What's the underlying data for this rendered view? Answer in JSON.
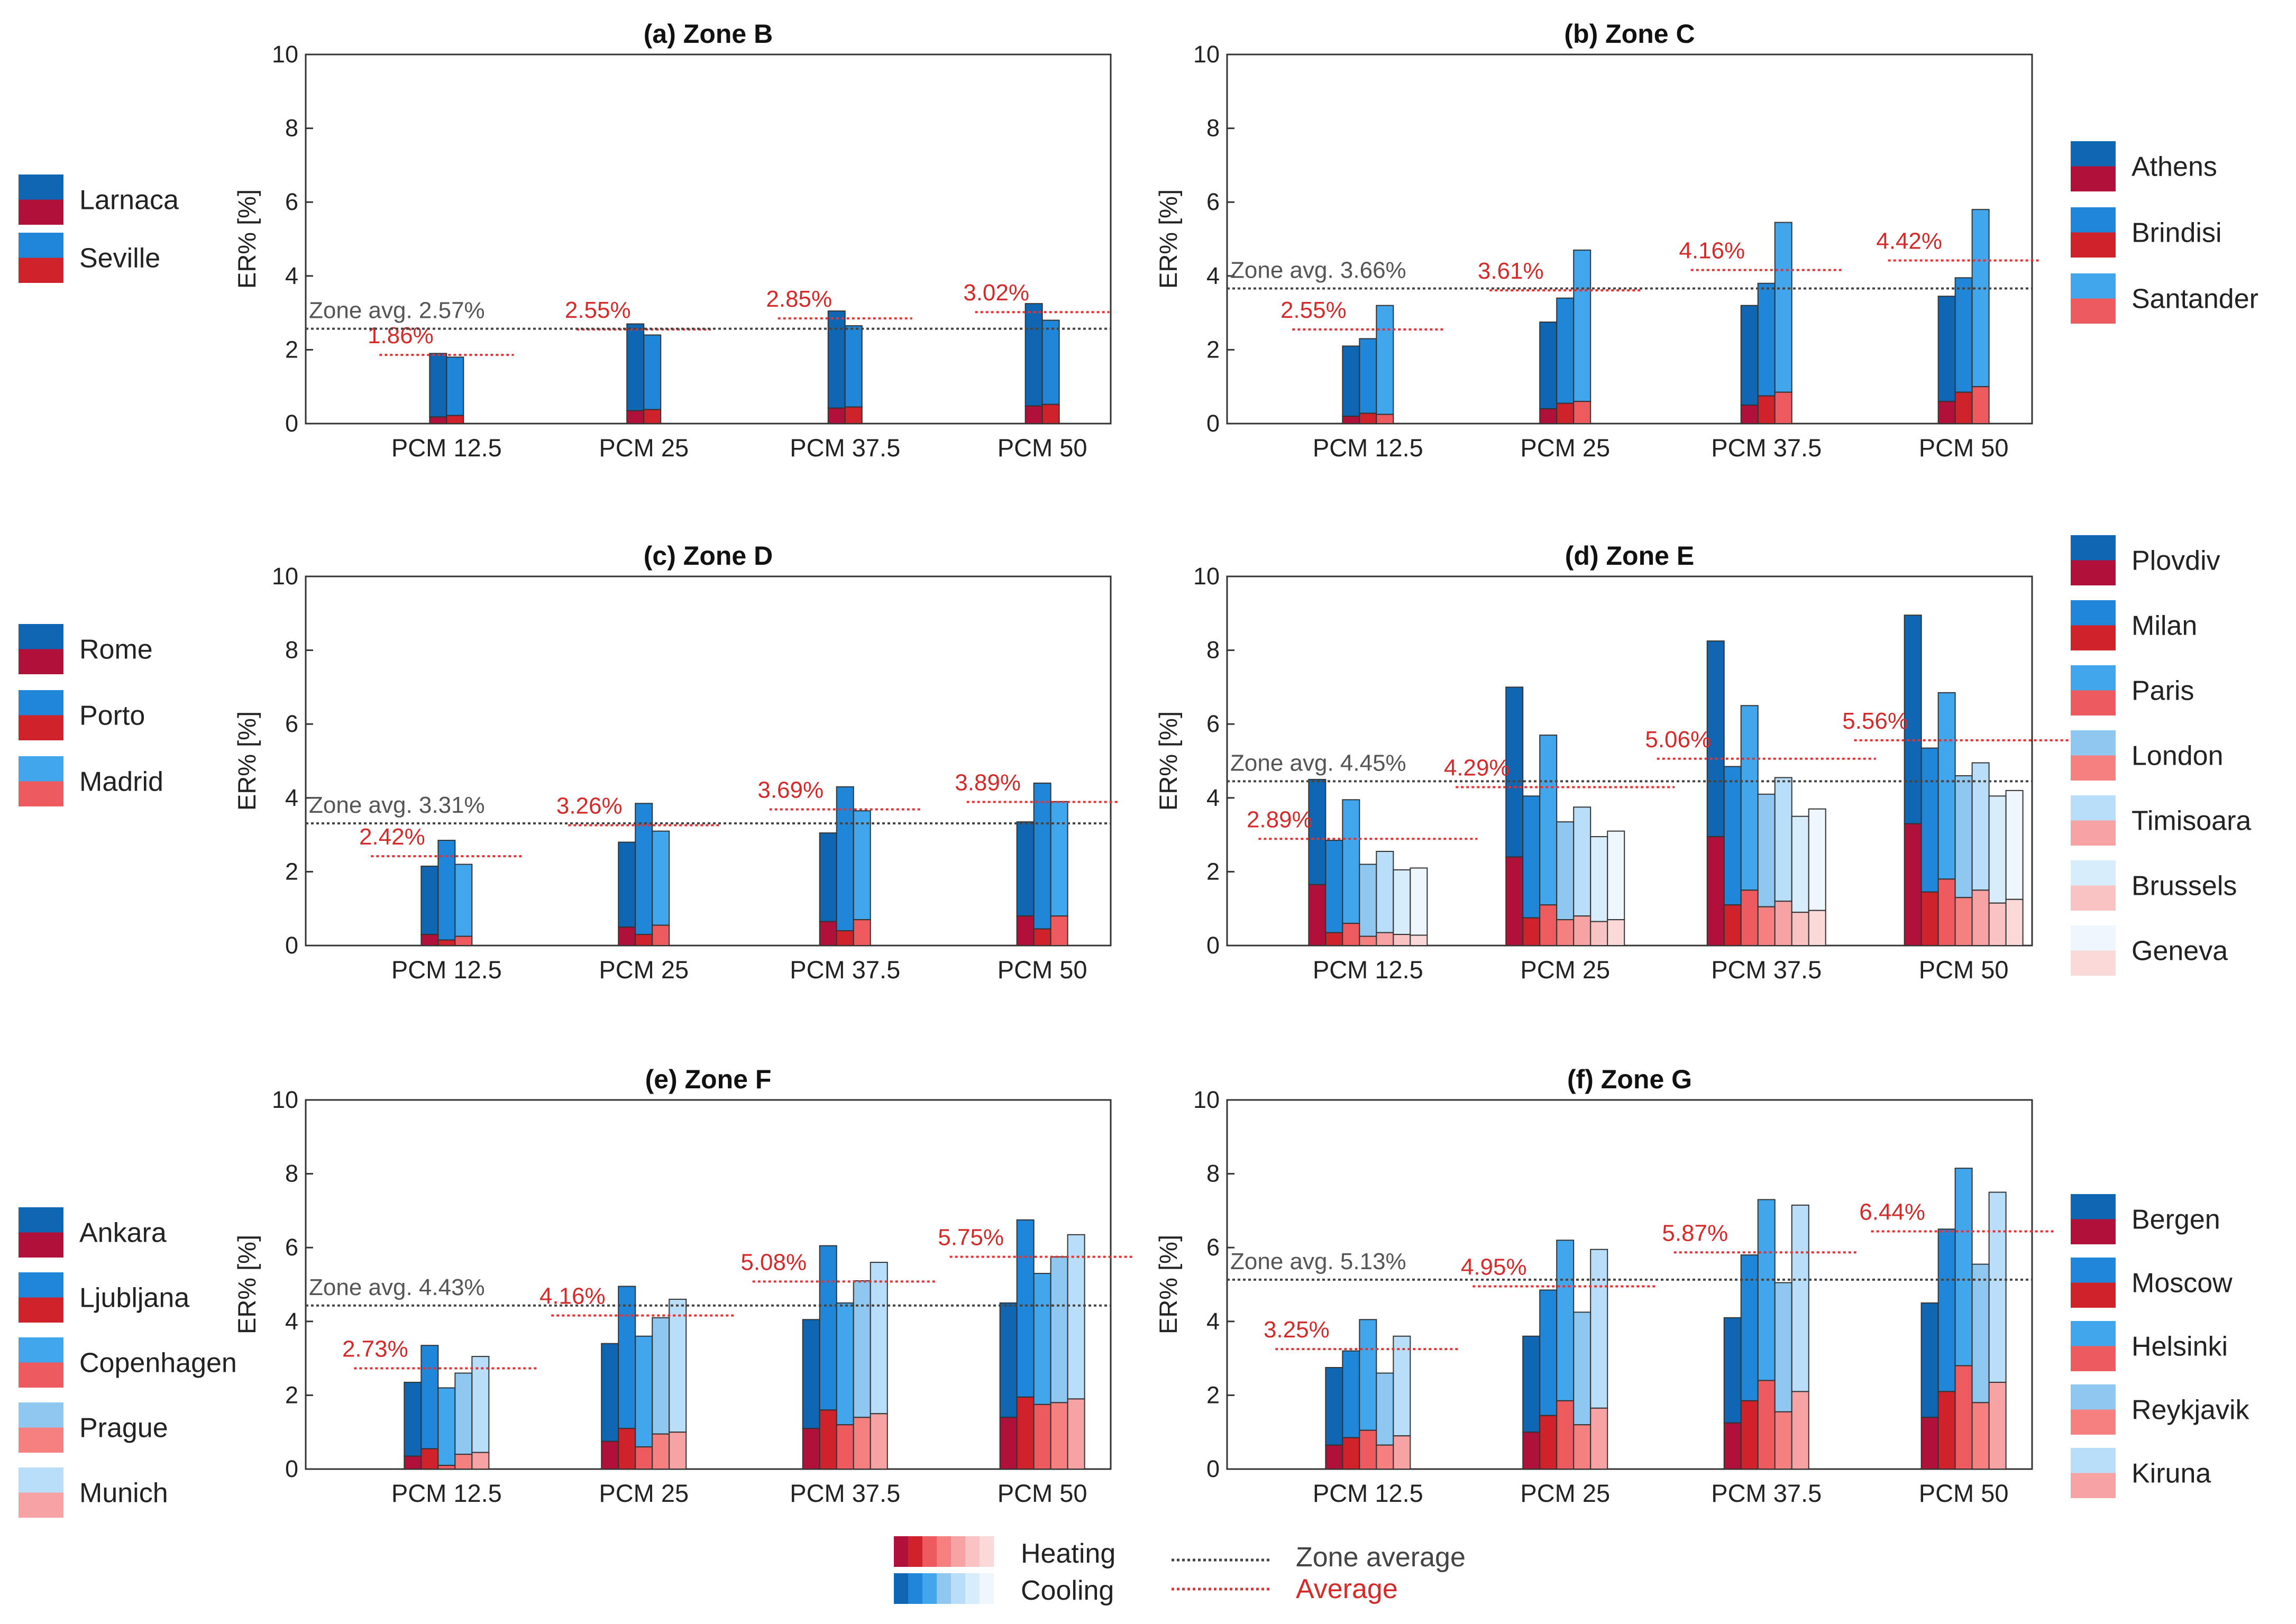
{
  "figure": {
    "bottom_legend": {
      "heating_label": "Heating",
      "cooling_label": "Cooling",
      "zone_average_label": "Zone average",
      "average_label": "Average"
    }
  },
  "colors": {
    "cooling": [
      "#0f67b3",
      "#1f86d8",
      "#41a6eb",
      "#8ec8f1",
      "#b9defa",
      "#d7edfb",
      "#eef7fd"
    ],
    "heating": [
      "#b0113a",
      "#d0222b",
      "#ee5b5f",
      "#f58080",
      "#f7a3a3",
      "#f9c3c3",
      "#fbd9d9"
    ],
    "zone_avg_line": "#444444",
    "avg_line": "#e63232"
  },
  "chart_data": [
    {
      "id": "a",
      "type": "bar",
      "subtype": "stacked-grouped",
      "title": "(a) Zone B",
      "ylabel": "ER% [%]",
      "ylim": [
        0,
        10
      ],
      "yticks": [
        0,
        2,
        4,
        6,
        8,
        10
      ],
      "categories": [
        "PCM 12.5",
        "PCM 25",
        "PCM 37.5",
        "PCM 50"
      ],
      "zone_avg": 2.57,
      "zone_avg_label": "Zone avg. 2.57%",
      "averages": [
        1.86,
        2.55,
        2.85,
        3.02
      ],
      "average_labels": [
        "1.86%",
        "2.55%",
        "2.85%",
        "3.02%"
      ],
      "legend_position": "left",
      "series": [
        {
          "name": "Larnaca",
          "total": [
            1.9,
            2.7,
            3.05,
            3.25
          ],
          "heating": [
            0.18,
            0.35,
            0.42,
            0.48
          ]
        },
        {
          "name": "Seville",
          "total": [
            1.8,
            2.4,
            2.65,
            2.8
          ],
          "heating": [
            0.22,
            0.38,
            0.45,
            0.52
          ]
        }
      ]
    },
    {
      "id": "b",
      "type": "bar",
      "subtype": "stacked-grouped",
      "title": "(b) Zone C",
      "ylabel": "ER% [%]",
      "ylim": [
        0,
        10
      ],
      "yticks": [
        0,
        2,
        4,
        6,
        8,
        10
      ],
      "categories": [
        "PCM 12.5",
        "PCM 25",
        "PCM 37.5",
        "PCM 50"
      ],
      "zone_avg": 3.66,
      "zone_avg_label": "Zone avg. 3.66%",
      "averages": [
        2.55,
        3.61,
        4.16,
        4.42
      ],
      "average_labels": [
        "2.55%",
        "3.61%",
        "4.16%",
        "4.42%"
      ],
      "legend_position": "right",
      "series": [
        {
          "name": "Athens",
          "total": [
            2.1,
            2.75,
            3.2,
            3.45
          ],
          "heating": [
            0.2,
            0.4,
            0.5,
            0.6
          ]
        },
        {
          "name": "Brindisi",
          "total": [
            2.3,
            3.4,
            3.8,
            3.95
          ],
          "heating": [
            0.28,
            0.55,
            0.75,
            0.85
          ]
        },
        {
          "name": "Santander",
          "total": [
            3.2,
            4.7,
            5.45,
            5.8
          ],
          "heating": [
            0.25,
            0.6,
            0.85,
            1.0
          ]
        }
      ]
    },
    {
      "id": "c",
      "type": "bar",
      "subtype": "stacked-grouped",
      "title": "(c) Zone D",
      "ylabel": "ER% [%]",
      "ylim": [
        0,
        10
      ],
      "yticks": [
        0,
        2,
        4,
        6,
        8,
        10
      ],
      "categories": [
        "PCM 12.5",
        "PCM 25",
        "PCM 37.5",
        "PCM 50"
      ],
      "zone_avg": 3.31,
      "zone_avg_label": "Zone avg. 3.31%",
      "averages": [
        2.42,
        3.26,
        3.69,
        3.89
      ],
      "average_labels": [
        "2.42%",
        "3.26%",
        "3.69%",
        "3.89%"
      ],
      "legend_position": "left",
      "series": [
        {
          "name": "Rome",
          "total": [
            2.15,
            2.8,
            3.05,
            3.35
          ],
          "heating": [
            0.3,
            0.5,
            0.65,
            0.8
          ]
        },
        {
          "name": "Porto",
          "total": [
            2.85,
            3.85,
            4.3,
            4.4
          ],
          "heating": [
            0.15,
            0.3,
            0.4,
            0.45
          ]
        },
        {
          "name": "Madrid",
          "total": [
            2.2,
            3.1,
            3.65,
            3.9
          ],
          "heating": [
            0.25,
            0.55,
            0.7,
            0.8
          ]
        }
      ]
    },
    {
      "id": "d",
      "type": "bar",
      "subtype": "stacked-grouped",
      "title": "(d) Zone E",
      "ylabel": "ER% [%]",
      "ylim": [
        0,
        10
      ],
      "yticks": [
        0,
        2,
        4,
        6,
        8,
        10
      ],
      "categories": [
        "PCM 12.5",
        "PCM 25",
        "PCM 37.5",
        "PCM 50"
      ],
      "zone_avg": 4.45,
      "zone_avg_label": "Zone avg. 4.45%",
      "averages": [
        2.89,
        4.29,
        5.06,
        5.56
      ],
      "average_labels": [
        "2.89%",
        "4.29%",
        "5.06%",
        "5.56%"
      ],
      "legend_position": "right",
      "series": [
        {
          "name": "Plovdiv",
          "total": [
            4.5,
            7.0,
            8.25,
            8.95
          ],
          "heating": [
            1.65,
            2.4,
            2.95,
            3.3
          ]
        },
        {
          "name": "Milan",
          "total": [
            2.85,
            4.05,
            4.85,
            5.35
          ],
          "heating": [
            0.35,
            0.75,
            1.1,
            1.45
          ]
        },
        {
          "name": "Paris",
          "total": [
            3.95,
            5.7,
            6.5,
            6.85
          ],
          "heating": [
            0.6,
            1.1,
            1.5,
            1.8
          ]
        },
        {
          "name": "London",
          "total": [
            2.2,
            3.35,
            4.1,
            4.6
          ],
          "heating": [
            0.25,
            0.7,
            1.05,
            1.3
          ]
        },
        {
          "name": "Timisoara",
          "total": [
            2.55,
            3.75,
            4.55,
            4.95
          ],
          "heating": [
            0.35,
            0.8,
            1.2,
            1.5
          ]
        },
        {
          "name": "Brussels",
          "total": [
            2.05,
            2.95,
            3.5,
            4.05
          ],
          "heating": [
            0.3,
            0.65,
            0.9,
            1.15
          ]
        },
        {
          "name": "Geneva",
          "total": [
            2.1,
            3.1,
            3.7,
            4.2
          ],
          "heating": [
            0.28,
            0.7,
            0.95,
            1.25
          ]
        }
      ]
    },
    {
      "id": "e",
      "type": "bar",
      "subtype": "stacked-grouped",
      "title": "(e) Zone F",
      "ylabel": "ER% [%]",
      "ylim": [
        0,
        10
      ],
      "yticks": [
        0,
        2,
        4,
        6,
        8,
        10
      ],
      "categories": [
        "PCM 12.5",
        "PCM 25",
        "PCM 37.5",
        "PCM 50"
      ],
      "zone_avg": 4.43,
      "zone_avg_label": "Zone avg. 4.43%",
      "averages": [
        2.73,
        4.16,
        5.08,
        5.75
      ],
      "average_labels": [
        "2.73%",
        "4.16%",
        "5.08%",
        "5.75%"
      ],
      "legend_position": "left",
      "series": [
        {
          "name": "Ankara",
          "total": [
            2.35,
            3.4,
            4.05,
            4.5
          ],
          "heating": [
            0.35,
            0.75,
            1.1,
            1.4
          ]
        },
        {
          "name": "Ljubljana",
          "total": [
            3.35,
            4.95,
            6.05,
            6.75
          ],
          "heating": [
            0.55,
            1.1,
            1.6,
            1.95
          ]
        },
        {
          "name": "Copenhagen",
          "total": [
            2.2,
            3.6,
            4.5,
            5.3
          ],
          "heating": [
            0.1,
            0.6,
            1.2,
            1.75
          ]
        },
        {
          "name": "Prague",
          "total": [
            2.6,
            4.1,
            5.1,
            5.75
          ],
          "heating": [
            0.4,
            0.95,
            1.4,
            1.8
          ]
        },
        {
          "name": "Munich",
          "total": [
            3.05,
            4.6,
            5.6,
            6.35
          ],
          "heating": [
            0.45,
            1.0,
            1.5,
            1.9
          ]
        }
      ]
    },
    {
      "id": "f",
      "type": "bar",
      "subtype": "stacked-grouped",
      "title": "(f) Zone G",
      "ylabel": "ER% [%]",
      "ylim": [
        0,
        10
      ],
      "yticks": [
        0,
        2,
        4,
        6,
        8,
        10
      ],
      "categories": [
        "PCM 12.5",
        "PCM 25",
        "PCM 37.5",
        "PCM 50"
      ],
      "zone_avg": 5.13,
      "zone_avg_label": "Zone avg. 5.13%",
      "averages": [
        3.25,
        4.95,
        5.87,
        6.44
      ],
      "average_labels": [
        "3.25%",
        "4.95%",
        "5.87%",
        "6.44%"
      ],
      "legend_position": "right",
      "series": [
        {
          "name": "Bergen",
          "total": [
            2.75,
            3.6,
            4.1,
            4.5
          ],
          "heating": [
            0.65,
            1.0,
            1.25,
            1.4
          ]
        },
        {
          "name": "Moscow",
          "total": [
            3.2,
            4.85,
            5.8,
            6.5
          ],
          "heating": [
            0.85,
            1.45,
            1.85,
            2.1
          ]
        },
        {
          "name": "Helsinki",
          "total": [
            4.05,
            6.2,
            7.3,
            8.15
          ],
          "heating": [
            1.05,
            1.85,
            2.4,
            2.8
          ]
        },
        {
          "name": "Reykjavik",
          "total": [
            2.6,
            4.25,
            5.05,
            5.55
          ],
          "heating": [
            0.65,
            1.2,
            1.55,
            1.8
          ]
        },
        {
          "name": "Kiruna",
          "total": [
            3.6,
            5.95,
            7.15,
            7.5
          ],
          "heating": [
            0.9,
            1.65,
            2.1,
            2.35
          ]
        }
      ]
    }
  ]
}
